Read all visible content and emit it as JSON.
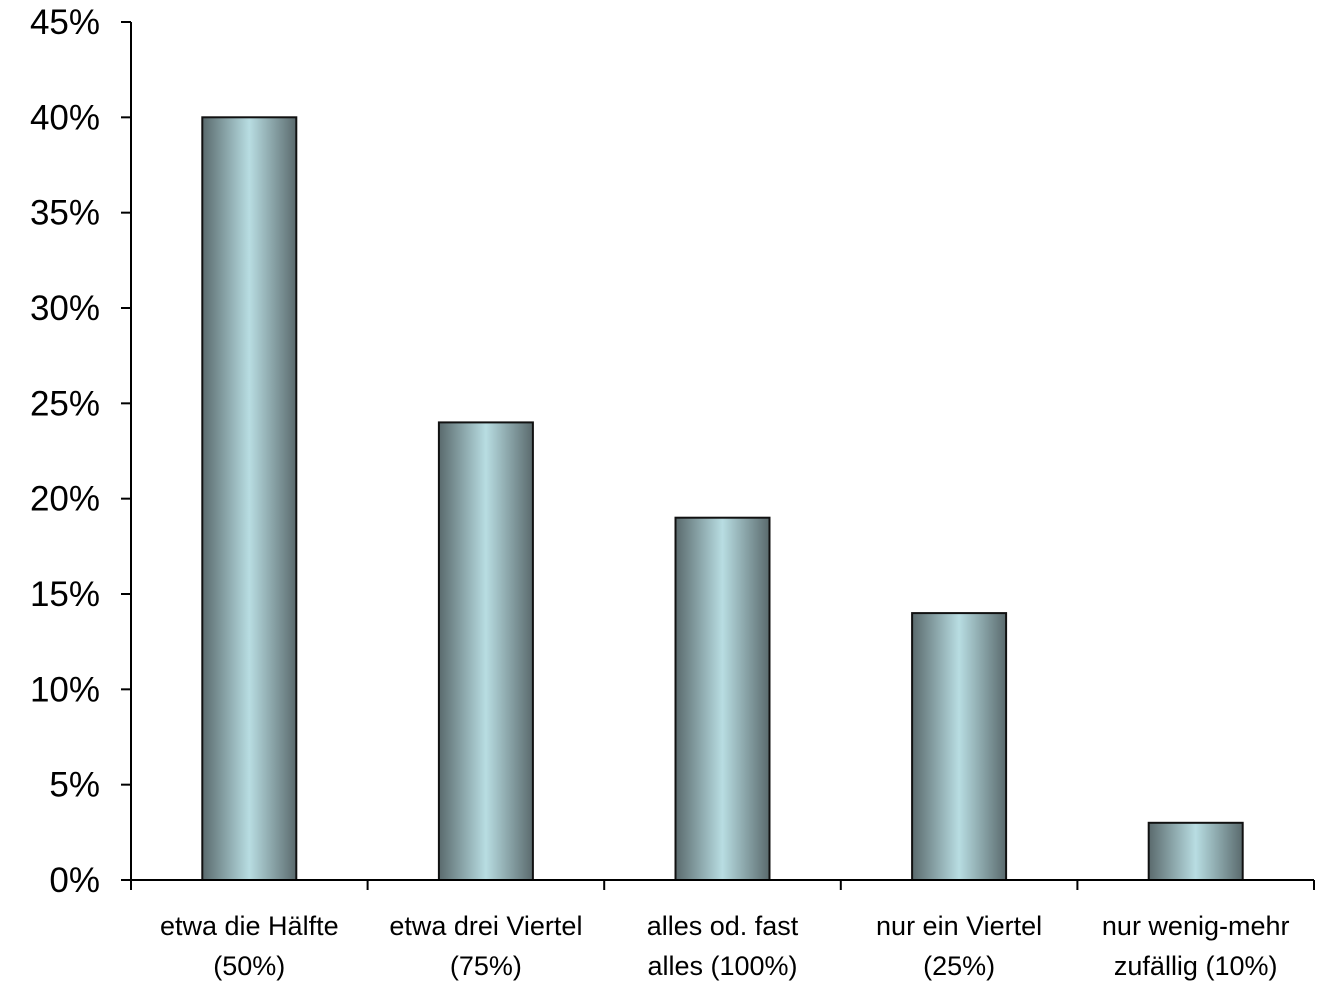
{
  "chart_data": {
    "type": "bar",
    "title": "",
    "xlabel": "",
    "ylabel": "",
    "categories": [
      [
        "etwa die Hälfte",
        "(50%)"
      ],
      [
        "etwa drei Viertel",
        "(75%)"
      ],
      [
        "alles od. fast",
        "alles (100%)"
      ],
      [
        "nur ein Viertel",
        "(25%)"
      ],
      [
        "nur wenig-mehr",
        "zufällig (10%)"
      ]
    ],
    "values": [
      40,
      24,
      19,
      14,
      3
    ],
    "ylim": [
      0,
      45
    ],
    "yticks": [
      0,
      5,
      10,
      15,
      20,
      25,
      30,
      35,
      40,
      45
    ],
    "ytick_labels": [
      "0%",
      "5%",
      "10%",
      "15%",
      "20%",
      "25%",
      "30%",
      "35%",
      "40%",
      "45%"
    ],
    "grid": false,
    "legend": "none",
    "colors": {
      "bar_edge": "#5a6a6d",
      "bar_center": "#b8dde2",
      "bar_outline": "#111111",
      "axis": "#000000"
    }
  }
}
